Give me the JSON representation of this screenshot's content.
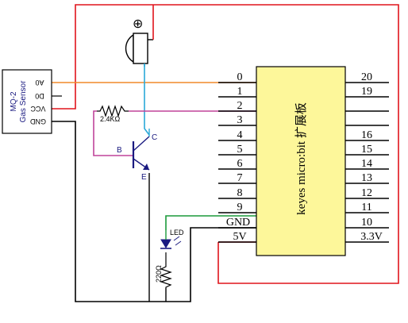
{
  "sensor": {
    "model": "MQ-2",
    "name": "Gas Sensor",
    "pins": [
      "A0",
      "D0",
      "VCC",
      "GND"
    ]
  },
  "board": {
    "label": "keyes micro:bit 扩展板",
    "left_pins": [
      "0",
      "1",
      "2",
      "3",
      "4",
      "5",
      "6",
      "7",
      "8",
      "9",
      "GND",
      "5V"
    ],
    "right_pins": [
      "20",
      "19",
      "",
      "",
      "16",
      "15",
      "14",
      "13",
      "12",
      "11",
      "10",
      "3.3V"
    ],
    "fill_color": "#fdf79a"
  },
  "transistor": {
    "base": "B",
    "collector": "C",
    "emitter": "E"
  },
  "resistor_base": {
    "value": "2.4KΩ"
  },
  "resistor_led": {
    "value": "220Ω"
  },
  "led": {
    "label": "LED"
  },
  "buzzer": {
    "symbol": "⊕"
  },
  "wire_colors": {
    "power": "#e0141c",
    "ground": "#000000",
    "analog": "#f08a2a",
    "digital": "#c0449a",
    "buzzer": "#2aa8d8",
    "led": "#1a9a3a"
  }
}
